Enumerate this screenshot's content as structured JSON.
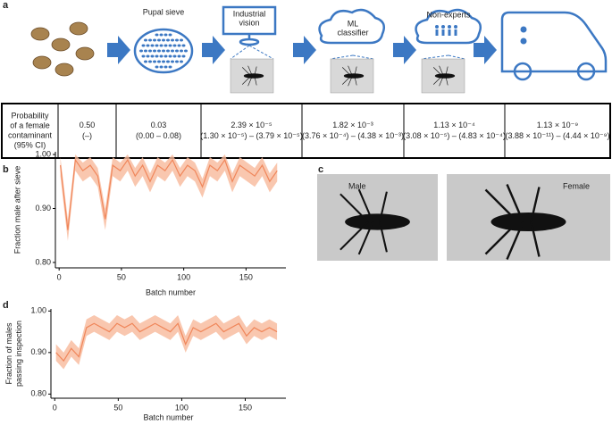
{
  "panel_labels": [
    "a",
    "b",
    "c",
    "d"
  ],
  "pipeline": {
    "stages": [
      [
        "Pupal sieve"
      ],
      [
        "Industrial",
        "vision"
      ],
      [
        "ML",
        "classifier"
      ],
      [
        "Non-experts"
      ]
    ]
  },
  "table": {
    "rows": [
      [
        [
          "Probability",
          "of a female",
          "contaminant",
          "(95% CI)"
        ],
        [
          "0.50",
          "(–)"
        ],
        [
          "0.03",
          "(0.00 – 0.08)"
        ],
        [
          "2.39 × 10⁻⁵",
          "(1.30 × 10⁻⁵) – (3.79 × 10⁻⁵)"
        ],
        [
          "1.82 × 10⁻³",
          "(3.76 × 10⁻⁴) – (4.38 × 10⁻³)"
        ],
        [
          "1.13 × 10⁻⁴",
          "(3.08 × 10⁻⁵) – (4.83 × 10⁻⁴)"
        ],
        [
          "1.13 × 10⁻⁹",
          "(3.88 × 10⁻¹¹) – (4.44 × 10⁻⁹)"
        ]
      ]
    ]
  },
  "photos": {
    "labels": [
      "Male",
      "Female"
    ]
  },
  "chart_data": [
    {
      "type": "line",
      "ylabel": [
        "Fraction male after sieve"
      ],
      "xlabel": "Batch number",
      "color": "#f0865a",
      "band_color": "#f8b99b",
      "x": [
        1,
        7,
        13,
        19,
        25,
        31,
        37,
        43,
        49,
        55,
        61,
        67,
        73,
        79,
        85,
        91,
        97,
        103,
        109,
        115,
        121,
        127,
        133,
        139,
        145,
        151,
        157,
        163,
        169,
        175
      ],
      "values": [
        0.98,
        0.86,
        0.99,
        0.97,
        0.98,
        0.96,
        0.88,
        0.98,
        0.97,
        0.99,
        0.96,
        0.98,
        0.95,
        0.98,
        0.97,
        0.99,
        0.96,
        0.98,
        0.97,
        0.94,
        0.98,
        0.97,
        0.99,
        0.95,
        0.98,
        0.97,
        0.96,
        0.98,
        0.95,
        0.97
      ],
      "lower": [
        0.96,
        0.84,
        0.97,
        0.95,
        0.96,
        0.94,
        0.86,
        0.96,
        0.95,
        0.97,
        0.94,
        0.96,
        0.93,
        0.96,
        0.95,
        0.97,
        0.94,
        0.96,
        0.95,
        0.92,
        0.96,
        0.95,
        0.97,
        0.93,
        0.96,
        0.95,
        0.94,
        0.96,
        0.93,
        0.95
      ],
      "upper": [
        0.995,
        0.88,
        1.0,
        0.985,
        0.995,
        0.975,
        0.9,
        0.995,
        0.985,
        1.0,
        0.975,
        0.995,
        0.965,
        0.995,
        0.985,
        1.0,
        0.975,
        0.995,
        0.985,
        0.955,
        0.995,
        0.985,
        1.0,
        0.965,
        0.995,
        0.985,
        0.975,
        0.995,
        0.965,
        0.985
      ],
      "xlim": [
        -3,
        182
      ],
      "xticks": [
        0,
        50,
        100,
        150
      ],
      "ylim": [
        0.79,
        1.005
      ],
      "yticks": [
        {
          "value": 0.8,
          "label": "0.80"
        },
        {
          "value": 0.9,
          "label": "0.90"
        },
        {
          "value": 1.0,
          "label": "1.00"
        }
      ]
    },
    {
      "type": "line",
      "ylabel": [
        "Fraction of males",
        "passing inspection"
      ],
      "xlabel": "Batch number",
      "color": "#f0865a",
      "band_color": "#f8b99b",
      "x": [
        1,
        7,
        13,
        19,
        25,
        31,
        37,
        43,
        49,
        55,
        61,
        67,
        73,
        79,
        85,
        91,
        97,
        103,
        109,
        115,
        121,
        127,
        133,
        139,
        145,
        151,
        157,
        163,
        169,
        175
      ],
      "values": [
        0.9,
        0.88,
        0.91,
        0.89,
        0.96,
        0.97,
        0.96,
        0.95,
        0.97,
        0.96,
        0.97,
        0.95,
        0.96,
        0.97,
        0.96,
        0.95,
        0.97,
        0.92,
        0.96,
        0.95,
        0.96,
        0.97,
        0.95,
        0.96,
        0.97,
        0.94,
        0.96,
        0.95,
        0.96,
        0.95
      ],
      "lower": [
        0.88,
        0.86,
        0.89,
        0.87,
        0.94,
        0.95,
        0.94,
        0.93,
        0.95,
        0.94,
        0.95,
        0.93,
        0.94,
        0.95,
        0.94,
        0.93,
        0.95,
        0.9,
        0.94,
        0.93,
        0.94,
        0.95,
        0.93,
        0.94,
        0.95,
        0.92,
        0.94,
        0.93,
        0.94,
        0.93
      ],
      "upper": [
        0.92,
        0.9,
        0.93,
        0.91,
        0.98,
        0.99,
        0.98,
        0.97,
        0.99,
        0.98,
        0.99,
        0.97,
        0.98,
        0.99,
        0.98,
        0.97,
        0.99,
        0.94,
        0.98,
        0.97,
        0.98,
        0.99,
        0.97,
        0.98,
        0.99,
        0.96,
        0.98,
        0.97,
        0.98,
        0.97
      ],
      "xlim": [
        -3,
        182
      ],
      "xticks": [
        0,
        50,
        100,
        150
      ],
      "ylim": [
        0.79,
        1.005
      ],
      "yticks": [
        {
          "value": 0.8,
          "label": "0.80"
        },
        {
          "value": 0.9,
          "label": "0.90"
        },
        {
          "value": 1.0,
          "label": "1.00"
        }
      ]
    }
  ]
}
